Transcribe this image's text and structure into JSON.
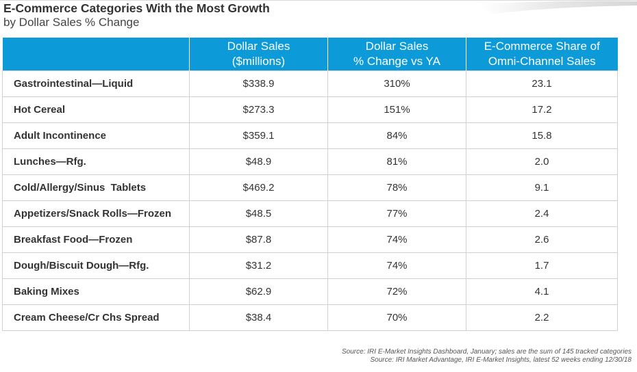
{
  "title": "E-Commerce Categories With the Most Growth",
  "subtitle": "by Dollar Sales % Change",
  "table": {
    "headers": [
      {
        "line1": "",
        "line2": ""
      },
      {
        "line1": "Dollar Sales",
        "line2": "($millions)"
      },
      {
        "line1": "Dollar Sales",
        "line2": "% Change vs YA"
      },
      {
        "line1": "E-Commerce Share of",
        "line2": "Omni-Channel Sales"
      }
    ],
    "rows": [
      {
        "category": "Gastrointestinal—Liquid",
        "dollar_sales": "$338.9",
        "pct_change": "310%",
        "ecom_share": "23.1"
      },
      {
        "category": "Hot Cereal",
        "dollar_sales": "$273.3",
        "pct_change": "151%",
        "ecom_share": "17.2"
      },
      {
        "category": "Adult Incontinence",
        "dollar_sales": "$359.1",
        "pct_change": "84%",
        "ecom_share": "15.8"
      },
      {
        "category": "Lunches—Rfg.",
        "dollar_sales": "$48.9",
        "pct_change": "81%",
        "ecom_share": "2.0"
      },
      {
        "category": "Cold/Allergy/Sinus  Tablets",
        "dollar_sales": "$469.2",
        "pct_change": "78%",
        "ecom_share": "9.1"
      },
      {
        "category": "Appetizers/Snack Rolls—Frozen",
        "dollar_sales": "$48.5",
        "pct_change": "77%",
        "ecom_share": "2.4"
      },
      {
        "category": "Breakfast Food—Frozen",
        "dollar_sales": "$87.8",
        "pct_change": "74%",
        "ecom_share": "2.6"
      },
      {
        "category": "Dough/Biscuit Dough—Rfg.",
        "dollar_sales": "$31.2",
        "pct_change": "74%",
        "ecom_share": "1.7"
      },
      {
        "category": "Baking Mixes",
        "dollar_sales": "$62.9",
        "pct_change": "72%",
        "ecom_share": "4.1"
      },
      {
        "category": "Cream Cheese/Cr Chs Spread",
        "dollar_sales": "$38.4",
        "pct_change": "70%",
        "ecom_share": "2.2"
      }
    ]
  },
  "source": {
    "line1": "Source: IRI E-Market Insights Dashboard, January; sales are the sum of 145 tracked categories",
    "line2": "Source: IRI Market Advantage, IRI E-Market Insights, latest 52 weeks ending 12/30/18"
  },
  "colors": {
    "header_bg": "#0d9ad8",
    "header_text": "#ffffff",
    "grid": "#d0d0d0"
  }
}
